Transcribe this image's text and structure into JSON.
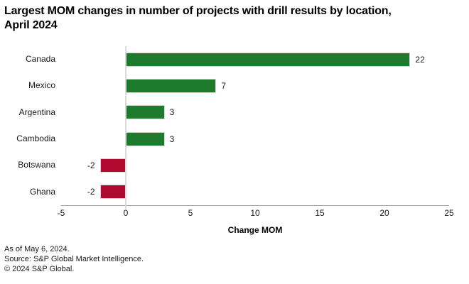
{
  "title": {
    "line1": "Largest MOM changes in number of projects with drill results by location,",
    "line2": "April 2024"
  },
  "chart_data": {
    "type": "bar",
    "orientation": "horizontal",
    "title": "Largest MOM changes in number of projects with drill results by location, April 2024",
    "categories": [
      "Canada",
      "Mexico",
      "Argentina",
      "Cambodia",
      "Botswana",
      "Ghana"
    ],
    "values": [
      22,
      7,
      3,
      3,
      -2,
      -2
    ],
    "xlabel": "Change MOM",
    "xlim": [
      -5,
      25
    ],
    "xticks": [
      -5,
      0,
      5,
      10,
      15,
      20,
      25
    ],
    "grid": "zero-line-only",
    "legend": "none",
    "colors": {
      "positive": "#1e7b2e",
      "negative": "#b1082f",
      "axis_line": "#a3a3a3",
      "zero_line": "#d9d9d9"
    }
  },
  "footer": {
    "lines": [
      "As of May 6, 2024.",
      "Source: S&P Global Market Intelligence.",
      "© 2024 S&P Global."
    ]
  }
}
